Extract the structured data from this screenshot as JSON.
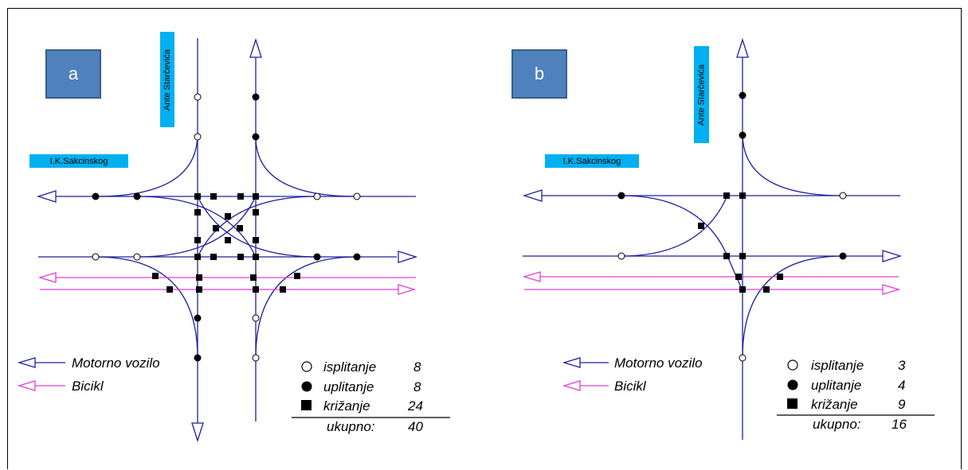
{
  "colors": {
    "motor": "#1f1f9f",
    "bicycle": "#e33fd6",
    "badge_bg": "#4f81bd",
    "street_label_bg": "#00b0f0"
  },
  "panels": [
    {
      "id": "a",
      "label": "a",
      "vertical_street": "Ante Starčevića",
      "horizontal_street": "I.K.Sakcinskog",
      "legend": {
        "motor_label": "Motorno vozilo",
        "bicycle_label": "Bicikl",
        "split_label": "isplitanje",
        "split_count": "8",
        "merge_label": "uplitanje",
        "merge_count": "8",
        "cross_label": "križanje",
        "cross_count": "24",
        "total_label": "ukupno:",
        "total_count": "40"
      }
    },
    {
      "id": "b",
      "label": "b",
      "vertical_street": "Ante Starčevića",
      "horizontal_street": "I.K.Sakcinskog",
      "legend": {
        "motor_label": "Motorno vozilo",
        "bicycle_label": "Bicikl",
        "split_label": "isplitanje",
        "split_count": "3",
        "merge_label": "uplitanje",
        "merge_count": "4",
        "cross_label": "križanje",
        "cross_count": "9",
        "total_label": "ukupno:",
        "total_count": "16"
      }
    }
  ]
}
